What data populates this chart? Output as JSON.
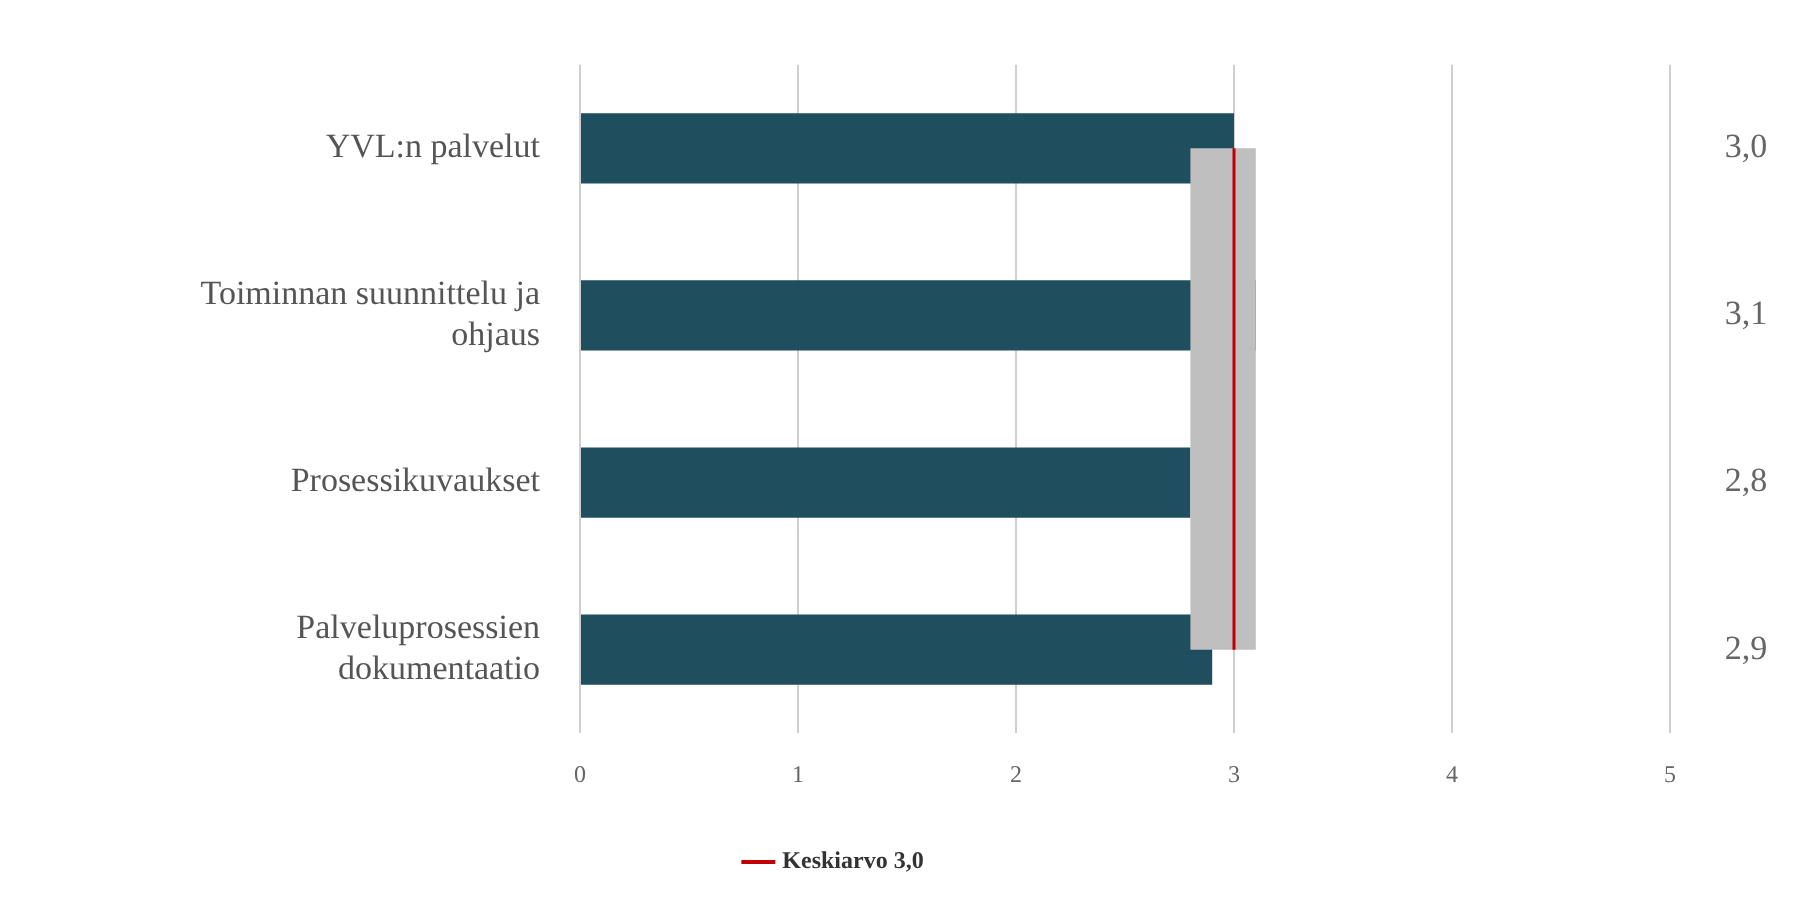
{
  "chart_data": {
    "type": "bar",
    "orientation": "horizontal",
    "categories": [
      "YVL:n palvelut",
      "Toiminnan suunnittelu ja ohjaus",
      "Prosessikuvaukset",
      "Palveluprosessien dokumentaatio"
    ],
    "values": [
      3.0,
      3.1,
      2.8,
      2.9
    ],
    "color": "#1f4e5f",
    "value_labels": [
      "3,0",
      "3,1",
      "2,8",
      "2,9"
    ],
    "xlim": [
      0,
      5
    ],
    "xticks": [
      0,
      1,
      2,
      3,
      4,
      5
    ],
    "grid": "x",
    "bands": [
      {
        "axis": "x",
        "from": 2.8,
        "to": 3.1,
        "color": "#bfbfbf"
      }
    ],
    "ref_lines": [
      {
        "axis": "x",
        "value": 3.0,
        "label": "Keskiarvo 3,0",
        "color": "#c00000"
      }
    ],
    "legend": "bottom"
  }
}
